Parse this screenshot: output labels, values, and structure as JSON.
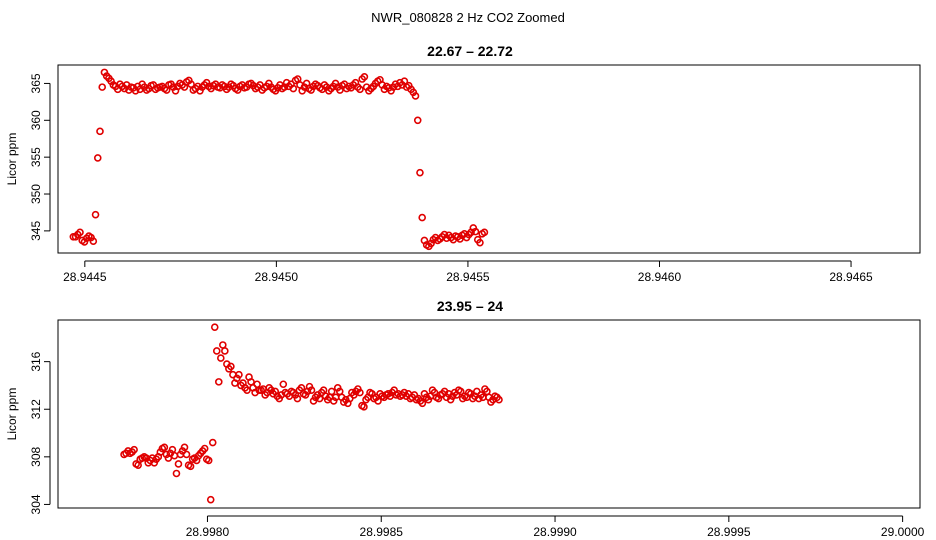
{
  "figure": {
    "suptitle": "NWR_080828  2 Hz CO2 Zoomed",
    "point_color": "#e00000"
  },
  "chart_data": [
    {
      "type": "scatter",
      "title": "22.67 – 22.72",
      "ylabel": "Licor ppm",
      "xlabel": "",
      "xlim": [
        28.94443,
        28.94668
      ],
      "ylim": [
        342,
        367.5
      ],
      "xticks": [
        28.9445,
        28.945,
        28.9455,
        28.946,
        28.9465
      ],
      "xtick_labels": [
        "28.9445",
        "28.9450",
        "28.9455",
        "28.9460",
        "28.9465"
      ],
      "yticks": [
        345,
        350,
        355,
        360,
        365
      ],
      "ytick_labels": [
        "345",
        "350",
        "355",
        "360",
        "365"
      ],
      "grid": false,
      "legend": "none",
      "series": [
        {
          "x_start": 28.94447,
          "x_step": 5.8e-06,
          "y": [
            344.2,
            344.2,
            344.5,
            344.8,
            343.7,
            343.5,
            344.0,
            344.3,
            344.1,
            343.6,
            347.2,
            354.9,
            358.5,
            364.5,
            366.5,
            366.0,
            365.7,
            365.3,
            364.8,
            364.6,
            364.2,
            364.9,
            364.6,
            364.3,
            364.8,
            364.1,
            364.5,
            364.4,
            364.0,
            364.6,
            364.2,
            364.9,
            364.5,
            364.1,
            364.3,
            364.7,
            364.8,
            364.2,
            364.4,
            364.5,
            364.6,
            364.3,
            364.1,
            364.8,
            364.9,
            364.5,
            364.0,
            364.6,
            365.0,
            364.8,
            364.5,
            365.2,
            365.4,
            364.9,
            364.1,
            364.3,
            364.6,
            364.0,
            364.5,
            364.8,
            365.1,
            364.6,
            364.3,
            364.7,
            364.9,
            364.5,
            364.4,
            364.8,
            364.6,
            364.2,
            364.5,
            364.9,
            364.7,
            364.3,
            364.1,
            364.6,
            364.8,
            364.4,
            364.5,
            364.9,
            365.0,
            364.7,
            364.3,
            364.5,
            364.8,
            364.1,
            364.4,
            364.6,
            365.0,
            364.5,
            364.2,
            364.0,
            364.4,
            364.8,
            364.3,
            364.5,
            365.1,
            364.6,
            364.9,
            364.3,
            365.4,
            365.6,
            364.8,
            364.0,
            364.5,
            365.0,
            364.3,
            364.1,
            364.6,
            364.9,
            364.7,
            364.4,
            364.2,
            364.8,
            364.5,
            364.0,
            364.3,
            364.6,
            365.0,
            364.5,
            364.1,
            364.7,
            364.9,
            364.3,
            364.6,
            364.4,
            364.8,
            365.1,
            364.5,
            364.2,
            365.6,
            365.9,
            364.5,
            364.0,
            364.3,
            364.6,
            365.0,
            365.3,
            365.5,
            364.8,
            364.2,
            364.6,
            364.4,
            364.0,
            364.5,
            364.9,
            364.6,
            365.1,
            364.8,
            365.3,
            364.5,
            364.7,
            364.2,
            363.8,
            363.3,
            360.0,
            352.9,
            346.8,
            343.7,
            343.1,
            342.9,
            343.3,
            343.8,
            344.1,
            343.7,
            343.9,
            344.2,
            344.5,
            344.0,
            344.4,
            344.1,
            343.8,
            344.3,
            344.2,
            343.9,
            344.4,
            344.6,
            344.1,
            344.5,
            344.8,
            345.4,
            344.9,
            343.8,
            343.4,
            344.6,
            344.8
          ]
        }
      ]
    },
    {
      "type": "scatter",
      "title": "23.95 – 24",
      "ylabel": "Licor ppm",
      "xlabel": "",
      "xlim": [
        28.99757,
        29.00005
      ],
      "ylim": [
        303.7,
        319.5
      ],
      "xticks": [
        28.998,
        28.9985,
        28.999,
        28.9995,
        29.0
      ],
      "xtick_labels": [
        "28.9980",
        "28.9985",
        "28.9990",
        "28.9995",
        "29.0000"
      ],
      "yticks": [
        304,
        308,
        312,
        316
      ],
      "ytick_labels": [
        "304",
        "308",
        "312",
        "316"
      ],
      "grid": false,
      "legend": "none",
      "series": [
        {
          "x_start": 28.99776,
          "x_step": 5.8e-06,
          "y": [
            308.2,
            308.3,
            308.5,
            308.3,
            308.4,
            308.6,
            307.4,
            307.3,
            307.8,
            307.9,
            308.0,
            307.9,
            307.5,
            307.7,
            307.9,
            307.5,
            307.8,
            308.0,
            308.4,
            308.7,
            308.8,
            308.2,
            307.9,
            308.3,
            308.6,
            308.1,
            306.6,
            307.4,
            308.2,
            308.5,
            308.8,
            308.2,
            307.3,
            307.2,
            307.8,
            307.9,
            307.7,
            308.1,
            308.3,
            308.5,
            308.7,
            307.8,
            307.7,
            304.4,
            309.2,
            318.9,
            316.9,
            314.3,
            316.3,
            317.4,
            316.9,
            315.8,
            315.4,
            315.6,
            314.9,
            314.2,
            314.6,
            314.9,
            314.0,
            314.2,
            313.8,
            313.6,
            314.7,
            314.3,
            313.8,
            313.4,
            314.1,
            313.6,
            313.6,
            313.7,
            313.2,
            313.4,
            313.8,
            313.6,
            313.3,
            313.5,
            313.1,
            312.9,
            313.2,
            314.1,
            313.4,
            313.3,
            313.1,
            313.5,
            313.4,
            313.2,
            312.9,
            313.6,
            313.8,
            313.3,
            313.2,
            313.5,
            313.9,
            313.6,
            312.7,
            313.0,
            313.2,
            312.9,
            313.4,
            313.6,
            313.1,
            312.8,
            313.0,
            313.5,
            312.7,
            313.0,
            313.8,
            313.5,
            313.0,
            312.6,
            312.8,
            312.5,
            312.9,
            313.4,
            313.2,
            313.5,
            313.7,
            313.4,
            312.3,
            312.2,
            312.8,
            313.0,
            313.4,
            313.3,
            312.9,
            313.0,
            312.7,
            313.3,
            313.1,
            313.0,
            313.2,
            313.3,
            313.1,
            313.4,
            313.6,
            313.2,
            313.3,
            313.1,
            313.2,
            313.4,
            313.1,
            313.3,
            312.9,
            313.0,
            313.2,
            312.8,
            312.9,
            312.7,
            312.5,
            313.3,
            313.0,
            312.8,
            313.1,
            313.6,
            313.4,
            313.0,
            312.9,
            313.2,
            313.3,
            313.5,
            313.0,
            313.3,
            312.8,
            313.1,
            313.4,
            313.2,
            313.6,
            313.5,
            312.9,
            313.1,
            313.0,
            313.4,
            313.3,
            312.9,
            313.1,
            313.5,
            312.9,
            313.2,
            313.0,
            313.7,
            313.5,
            313.0,
            312.6,
            312.8,
            313.1,
            313.0,
            312.8
          ]
        }
      ]
    }
  ]
}
